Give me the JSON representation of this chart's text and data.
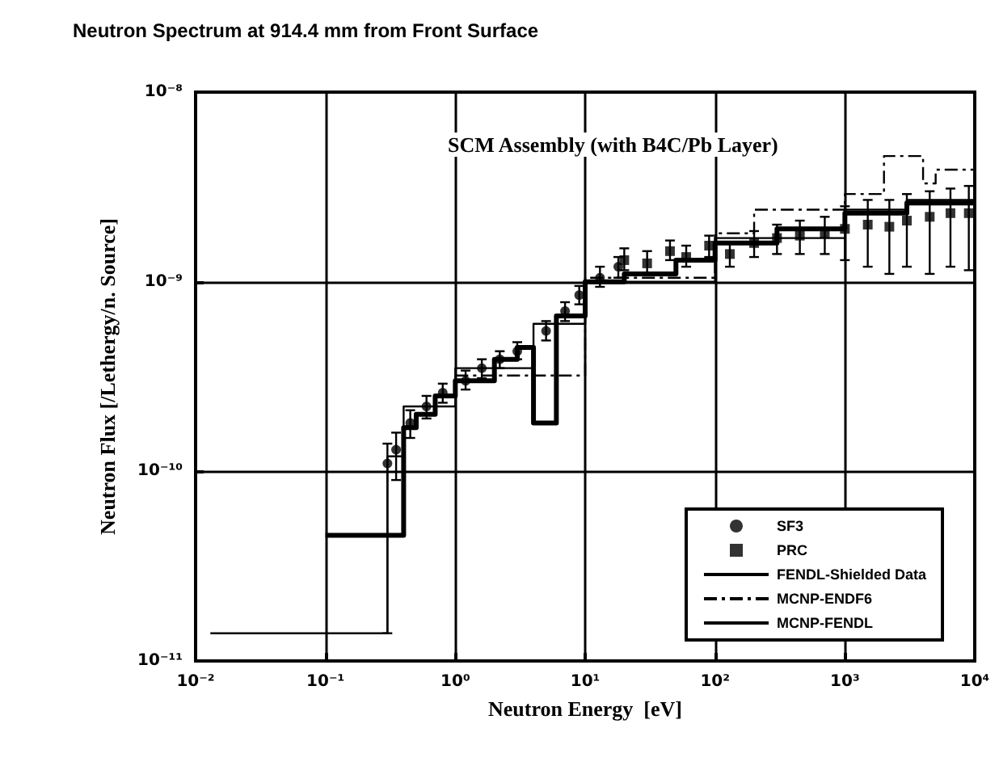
{
  "chart_data": {
    "type": "step",
    "title": "Neutron Spectrum at 914.4 mm from Front Surface",
    "xlabel": "Neutron Energy  [eV]",
    "ylabel": "Neutron Flux [/Lethergy/n. Source]",
    "annotations": [
      "SCM Assembly (with B4C/Pb Layer)"
    ],
    "log": "xy",
    "grid": true,
    "legend": "bottom right",
    "xlim": [
      0.01,
      10000
    ],
    "ylim": [
      1e-11,
      1e-08
    ],
    "xticks": [
      {
        "value": 0.01,
        "label": "10⁻²"
      },
      {
        "value": 0.1,
        "label": "10⁻¹"
      },
      {
        "value": 1,
        "label": "10⁰"
      },
      {
        "value": 10,
        "label": "10¹"
      },
      {
        "value": 100,
        "label": "10²"
      },
      {
        "value": 1000,
        "label": "10³"
      },
      {
        "value": 10000,
        "label": "10⁴"
      }
    ],
    "yticks": [
      {
        "value": 1e-11,
        "label": "10⁻¹¹"
      },
      {
        "value": 1e-10,
        "label": "10⁻¹⁰"
      },
      {
        "value": 1e-09,
        "label": "10⁻⁹"
      },
      {
        "value": 1e-08,
        "label": "10⁻⁸"
      }
    ],
    "series": [
      {
        "name": "SF3",
        "type": "scatter",
        "marker": "circle",
        "color": "#000000",
        "x": [
          0.3,
          0.35,
          0.45,
          0.6,
          0.8,
          1.2,
          1.6,
          2.2,
          3,
          5,
          7,
          9,
          13,
          18
        ],
        "values": [
          1.1e-10,
          1.3e-10,
          1.8e-10,
          2.2e-10,
          2.6e-10,
          3e-10,
          3.5e-10,
          3.9e-10,
          4.3e-10,
          5.5e-10,
          7e-10,
          8.5e-10,
          1.05e-09,
          1.2e-09
        ],
        "errors": [
          [
            1.4e-11,
            1.4e-10
          ],
          [
            9e-11,
            1.6e-10
          ],
          [
            1.5e-10,
            2.1e-10
          ],
          [
            1.9e-10,
            2.5e-10
          ],
          [
            2.3e-10,
            2.9e-10
          ],
          [
            2.7e-10,
            3.4e-10
          ],
          [
            3.1e-10,
            3.9e-10
          ],
          [
            3.5e-10,
            4.3e-10
          ],
          [
            3.9e-10,
            4.8e-10
          ],
          [
            4.9e-10,
            6.2e-10
          ],
          [
            6.2e-10,
            7.8e-10
          ],
          [
            7.6e-10,
            9.5e-10
          ],
          [
            9.4e-10,
            1.2e-09
          ],
          [
            1.05e-09,
            1.35e-09
          ]
        ]
      },
      {
        "name": "PRC",
        "type": "scatter",
        "marker": "square",
        "color": "#000000",
        "x": [
          20,
          30,
          45,
          60,
          90,
          130,
          200,
          300,
          450,
          700,
          1000,
          1500,
          2200,
          3000,
          4500,
          6500,
          9000
        ],
        "values": [
          1.3e-09,
          1.25e-09,
          1.45e-09,
          1.35e-09,
          1.55e-09,
          1.4e-09,
          1.6e-09,
          1.7e-09,
          1.75e-09,
          1.8e-09,
          1.9e-09,
          2e-09,
          1.95e-09,
          2.1e-09,
          2.2e-09,
          2.3e-09,
          2.3e-09
        ],
        "errors": [
          [
            1.15e-09,
            1.5e-09
          ],
          [
            1.1e-09,
            1.45e-09
          ],
          [
            1.3e-09,
            1.65e-09
          ],
          [
            1.2e-09,
            1.55e-09
          ],
          [
            1.35e-09,
            1.75e-09
          ],
          [
            1.2e-09,
            1.6e-09
          ],
          [
            1.35e-09,
            1.85e-09
          ],
          [
            1.4e-09,
            2e-09
          ],
          [
            1.4e-09,
            2.1e-09
          ],
          [
            1.4e-09,
            2.2e-09
          ],
          [
            1.3e-09,
            2.5e-09
          ],
          [
            1.2e-09,
            2.7e-09
          ],
          [
            1.1e-09,
            2.7e-09
          ],
          [
            1.2e-09,
            2.9e-09
          ],
          [
            1.1e-09,
            3e-09
          ],
          [
            1.2e-09,
            3.1e-09
          ],
          [
            1.15e-09,
            3.2e-09
          ]
        ]
      },
      {
        "name": "FENDL-Shielded Data",
        "line_style": "solid",
        "color": "#000000",
        "x": [
          0.1,
          0.4,
          0.5,
          0.7,
          1,
          2,
          3,
          4,
          6,
          10,
          20,
          50,
          100,
          300,
          1000,
          3000,
          10000
        ],
        "values": [
          4.6e-11,
          1.7e-10,
          2e-10,
          2.5e-10,
          3e-10,
          3.9e-10,
          4.5e-10,
          1.8e-10,
          6.6e-10,
          1e-09,
          1.1e-09,
          1.3e-09,
          1.6e-09,
          1.9e-09,
          2.3e-09,
          2.6e-09,
          2.6e-09
        ]
      },
      {
        "name": "MCNP-ENDF6",
        "line_style": "dashed",
        "color": "#000000",
        "x": [
          1,
          10,
          100,
          200,
          1000,
          2000,
          4000,
          5000,
          10000
        ],
        "values": [
          3.2e-10,
          1.05e-09,
          1.8e-09,
          2.4e-09,
          2.9e-09,
          4.6e-09,
          3.3e-09,
          3.9e-09,
          3.9e-09
        ]
      },
      {
        "name": "MCNP-FENDL",
        "line_style": "solid",
        "color": "#000000",
        "x": [
          0.013,
          0.3,
          0.4,
          1,
          4,
          10,
          100,
          1000,
          3000,
          10000
        ],
        "values": [
          1.4e-11,
          1.2e-10,
          2.2e-10,
          3.5e-10,
          6e-10,
          1e-09,
          1.7e-09,
          2.4e-09,
          2.7e-09,
          2.7e-09
        ]
      }
    ]
  }
}
